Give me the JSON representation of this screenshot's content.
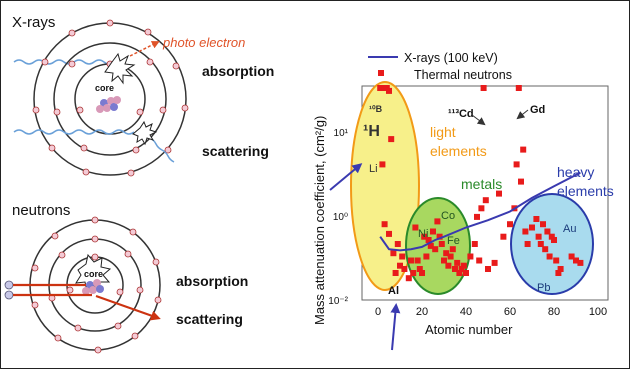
{
  "left": {
    "xray_title": "X-rays",
    "photo_electron": "photo electron",
    "core": "core",
    "absorption": "absorption",
    "scattering": "scattering",
    "neutron_title": "neutrons",
    "n_absorption": "absorption",
    "n_scattering": "scattering"
  },
  "colors": {
    "photo_electron": "#e0542a",
    "xray_wave": "#6aa0d8",
    "neutron_arrow": "#cc3311",
    "light_fill": "#f7f08a",
    "light_border": "#f29a17",
    "metals_fill": "#a8d860",
    "metals_border": "#2a8a2a",
    "heavy_fill": "#a9dbee",
    "heavy_border": "#2a3caa",
    "marker": "#e81b1b",
    "xray_line": "#3a3ab0"
  },
  "chart_data": {
    "type": "scatter",
    "ylabel": "Mass attenuation coefficient, (cm²/g)",
    "xlabel": "Atomic number",
    "x_ticks": [
      "0",
      "20",
      "40",
      "60",
      "80",
      "100"
    ],
    "y_ticks": [
      "10⁻²",
      "10⁰",
      "10¹"
    ],
    "legend_xray": "X-rays (100 keV)",
    "legend_thermal": "Thermal neutrons",
    "groups": {
      "light": "light elements",
      "metals": "metals",
      "heavy": "heavy elements"
    },
    "element_labels": {
      "H": "¹H",
      "B": "¹⁰B",
      "Li": "Li",
      "Cd": "¹¹³Cd",
      "Gd": "Gd",
      "Co": "Co",
      "Ni": "Ni",
      "Fe": "Fe",
      "Au": "Au",
      "Pb": "Pb",
      "Al": "Al"
    },
    "neutron_points": [
      [
        1,
        150
      ],
      [
        3,
        70
      ],
      [
        4,
        45
      ],
      [
        5,
        30
      ],
      [
        2,
        4
      ],
      [
        6,
        8
      ],
      [
        3,
        0.6
      ],
      [
        5,
        0.35
      ],
      [
        7,
        0.12
      ],
      [
        8,
        0.04
      ],
      [
        9,
        0.2
      ],
      [
        10,
        0.06
      ],
      [
        11,
        0.1
      ],
      [
        12,
        0.05
      ],
      [
        14,
        0.03
      ],
      [
        15,
        0.08
      ],
      [
        16,
        0.04
      ],
      [
        17,
        0.5
      ],
      [
        18,
        0.08
      ],
      [
        19,
        0.05
      ],
      [
        20,
        0.04
      ],
      [
        21,
        0.3
      ],
      [
        22,
        0.1
      ],
      [
        23,
        0.25
      ],
      [
        24,
        0.18
      ],
      [
        25,
        0.4
      ],
      [
        26,
        0.15
      ],
      [
        27,
        0.7
      ],
      [
        28,
        0.3
      ],
      [
        29,
        0.2
      ],
      [
        30,
        0.08
      ],
      [
        31,
        0.12
      ],
      [
        32,
        0.06
      ],
      [
        33,
        0.1
      ],
      [
        34,
        0.15
      ],
      [
        35,
        0.05
      ],
      [
        36,
        0.07
      ],
      [
        37,
        0.04
      ],
      [
        38,
        0.05
      ],
      [
        39,
        0.06
      ],
      [
        40,
        0.04
      ],
      [
        42,
        0.1
      ],
      [
        44,
        0.2
      ],
      [
        45,
        0.9
      ],
      [
        46,
        0.08
      ],
      [
        47,
        1.2
      ],
      [
        48,
        100
      ],
      [
        49,
        1.5
      ],
      [
        50,
        0.05
      ],
      [
        53,
        0.07
      ],
      [
        55,
        1.8
      ],
      [
        57,
        0.3
      ],
      [
        60,
        0.6
      ],
      [
        62,
        1.2
      ],
      [
        63,
        4
      ],
      [
        64,
        120
      ],
      [
        65,
        2.5
      ],
      [
        66,
        6
      ],
      [
        67,
        0.4
      ],
      [
        68,
        0.2
      ],
      [
        70,
        0.5
      ],
      [
        72,
        0.8
      ],
      [
        73,
        0.3
      ],
      [
        74,
        0.2
      ],
      [
        75,
        0.6
      ],
      [
        76,
        0.15
      ],
      [
        77,
        0.4
      ],
      [
        78,
        0.1
      ],
      [
        79,
        0.3
      ],
      [
        80,
        0.25
      ],
      [
        81,
        0.08
      ],
      [
        82,
        0.04
      ],
      [
        83,
        0.05
      ],
      [
        88,
        0.1
      ],
      [
        90,
        0.08
      ],
      [
        92,
        0.07
      ]
    ],
    "xray_curve": [
      [
        1,
        0.3
      ],
      [
        5,
        0.15
      ],
      [
        10,
        0.14
      ],
      [
        15,
        0.15
      ],
      [
        20,
        0.17
      ],
      [
        26,
        0.25
      ],
      [
        30,
        0.3
      ],
      [
        40,
        0.5
      ],
      [
        50,
        0.75
      ],
      [
        60,
        1.1
      ],
      [
        70,
        1.6
      ],
      [
        80,
        2.2
      ],
      [
        92,
        3.2
      ]
    ]
  }
}
